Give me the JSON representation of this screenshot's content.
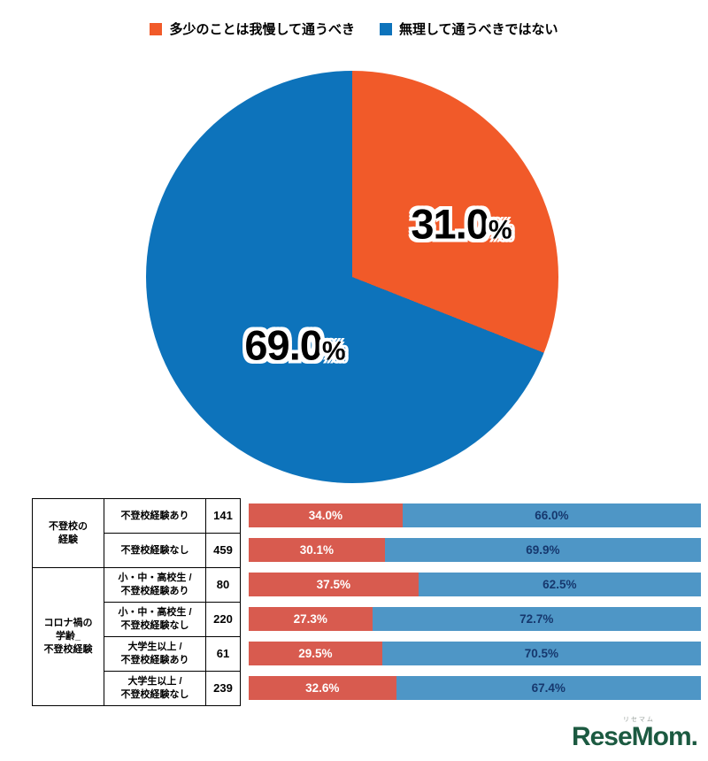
{
  "legend": {
    "items": [
      {
        "label": "多少のことは我慢して通うべき",
        "color": "#f15a29"
      },
      {
        "label": "無理して通うべきではない",
        "color": "#0d73bb"
      }
    ]
  },
  "pie": {
    "labels": [
      {
        "value": "31.0",
        "unit": "%"
      },
      {
        "value": "69.0",
        "unit": "%"
      }
    ]
  },
  "chart_data": [
    {
      "type": "pie",
      "labels": [
        "多少のことは我慢して通うべき",
        "無理して通うべきではない"
      ],
      "values": [
        31.0,
        69.0
      ],
      "colors": [
        "#f15a29",
        "#0d73bb"
      ],
      "data_labels": [
        "31.0%",
        "69.0%"
      ],
      "start_angle_deg": 0,
      "direction": "clockwise",
      "legend_position": "top"
    },
    {
      "type": "bar",
      "orientation": "horizontal",
      "stacked": true,
      "x_range": [
        0,
        100
      ],
      "categories": [
        "不登校経験あり",
        "不登校経験なし",
        "小・中・高校生 / 不登校経験あり",
        "小・中・高校生 / 不登校経験なし",
        "大学生以上 / 不登校経験あり",
        "大学生以上 / 不登校経験なし"
      ],
      "counts": [
        141,
        459,
        80,
        220,
        61,
        239
      ],
      "series": [
        {
          "name": "多少のことは我慢して通うべき",
          "color": "#d85b4f",
          "values": [
            34.0,
            30.1,
            37.5,
            27.3,
            29.5,
            32.6
          ]
        },
        {
          "name": "無理して通うべきではない",
          "color": "#4e96c6",
          "values": [
            66.0,
            69.9,
            62.5,
            72.7,
            70.5,
            67.4
          ]
        }
      ]
    }
  ],
  "table": {
    "groups": [
      {
        "label": "不登校の\n経験",
        "span": 2
      },
      {
        "label": "コロナ禍の\n学齢_\n不登校経験",
        "span": 4
      }
    ],
    "rows": [
      {
        "label": "不登校経験あり",
        "count": "141",
        "red": 34.0,
        "blue": 66.0,
        "red_label": "34.0%",
        "blue_label": "66.0%"
      },
      {
        "label": "不登校経験なし",
        "count": "459",
        "red": 30.1,
        "blue": 69.9,
        "red_label": "30.1%",
        "blue_label": "69.9%"
      },
      {
        "label": "小・中・高校生 /\n不登校経験あり",
        "count": "80",
        "red": 37.5,
        "blue": 62.5,
        "red_label": "37.5%",
        "blue_label": "62.5%"
      },
      {
        "label": "小・中・高校生 /\n不登校経験なし",
        "count": "220",
        "red": 27.3,
        "blue": 72.7,
        "red_label": "27.3%",
        "blue_label": "72.7%"
      },
      {
        "label": "大学生以上 /\n不登校経験あり",
        "count": "61",
        "red": 29.5,
        "blue": 70.5,
        "red_label": "29.5%",
        "blue_label": "70.5%"
      },
      {
        "label": "大学生以上 /\n不登校経験なし",
        "count": "239",
        "red": 32.6,
        "blue": 67.4,
        "red_label": "32.6%",
        "blue_label": "67.4%"
      }
    ]
  },
  "logo": {
    "text": "ReseMom",
    "dot": ".",
    "ruby": "リセマム",
    "color": "#1c5a41"
  }
}
